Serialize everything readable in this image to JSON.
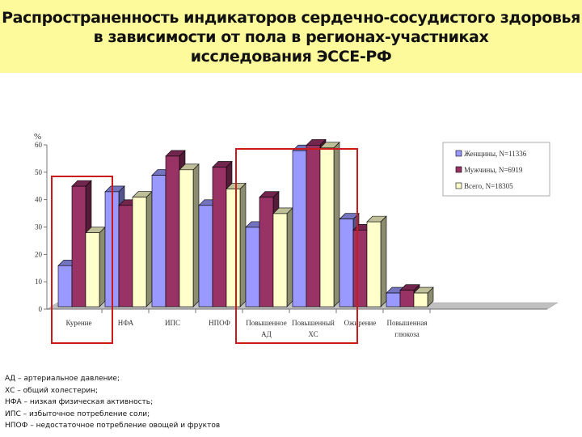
{
  "title": {
    "lines": [
      "Распространенность индикаторов сердечно-сосудистого здоровья",
      "в зависимости от пола в регионах-участниках",
      "исследования ЭССЕ-РФ"
    ]
  },
  "colors": {
    "women": "#9999ff",
    "men": "#993366",
    "total": "#ffffcc",
    "highlight_box": "#cc1a1a",
    "title_band": "#fdfa9c"
  },
  "chart_data": {
    "type": "bar",
    "title": "Распространенность индикаторов сердечно-сосудистого здоровья в зависимости от пола в регионах-участниках исследования ЭССЕ-РФ",
    "ylabel": "%",
    "xlabel": "",
    "ylim": [
      0,
      60
    ],
    "yticks": [
      0,
      10,
      20,
      30,
      40,
      50,
      60
    ],
    "grid": false,
    "legend_position": "top-right",
    "categories": [
      "Курение",
      "НФА",
      "ИПС",
      "НПОФ",
      "Повышенное АД",
      "Повышенный ХС",
      "Ожирение",
      "Повышенная глюкоза"
    ],
    "category_labels": [
      [
        "Курение"
      ],
      [
        "НФА"
      ],
      [
        "ИПС"
      ],
      [
        "НПОФ"
      ],
      [
        "Повышенное",
        "АД"
      ],
      [
        "Повышенный",
        "ХС"
      ],
      [
        "Ожирение"
      ],
      [
        "Повышенная",
        "глюкоза"
      ]
    ],
    "series": [
      {
        "name": "Женщины, N=11336",
        "values": [
          15,
          42,
          48,
          37,
          29,
          57,
          32,
          5
        ]
      },
      {
        "name": "Мужчины, N=6919",
        "values": [
          44,
          37,
          55,
          51,
          40,
          59,
          28,
          6
        ]
      },
      {
        "name": "Всего, N=18305",
        "values": [
          27,
          40,
          50,
          43,
          34,
          58,
          31,
          5
        ]
      }
    ],
    "highlighted_categories": [
      "Курение",
      "НПОФ",
      "Повышенное АД"
    ]
  },
  "notes": [
    "АД – артериальное давление;",
    "ХС – общий холестерин;",
    "НФА – низкая физическая активность;",
    "ИПС – избыточное потребление соли;",
    "НПОФ – недостаточное потребление овощей и фруктов"
  ]
}
